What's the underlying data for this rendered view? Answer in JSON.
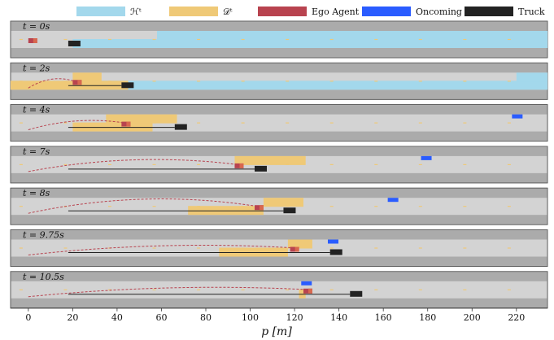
{
  "colors": {
    "H": "#a3d8ec",
    "D": "#efc977",
    "ego": "#b8434f",
    "oncoming": "#2a5cff",
    "truck": "#222222",
    "road": "#d3d3d3",
    "shoulder": "#ababab",
    "lane_dash": "#efc977",
    "path": "#b8434f"
  },
  "legend": [
    {
      "key": "H",
      "label": "ℋᵗ",
      "color": "#a3d8ec"
    },
    {
      "key": "D",
      "label": "𝒟ᵗ",
      "color": "#efc977"
    },
    {
      "key": "ego",
      "label": "Ego Agent",
      "color": "#b8434f"
    },
    {
      "key": "oncoming",
      "label": "Oncoming Traffic",
      "color": "#2a5cff"
    },
    {
      "key": "truck",
      "label": "Truck",
      "color": "#222222"
    }
  ],
  "axis": {
    "label": "p [m]",
    "ticks": [
      0,
      20,
      40,
      60,
      80,
      100,
      120,
      140,
      160,
      180,
      200,
      220
    ],
    "xlim": [
      -8,
      234
    ]
  },
  "chart_data": {
    "type": "scenario-timeline",
    "xlabel": "p [m]",
    "panels": [
      {
        "label": "t = 0s",
        "H": [
          [
            20,
            234,
            1
          ],
          [
            58,
            234,
            0
          ]
        ],
        "D": [],
        "ego": 0,
        "truck": 18,
        "oncoming": null,
        "path": null,
        "truck_line": null
      },
      {
        "label": "t = 2s",
        "H": [
          [
            20,
            234,
            1
          ],
          [
            220,
            234,
            0
          ]
        ],
        "D": [
          [
            -8,
            45,
            1
          ],
          [
            20,
            33,
            0
          ]
        ],
        "ego": 20,
        "truck": 42,
        "oncoming": null,
        "path": [
          0,
          20,
          0.05
        ],
        "truck_line": [
          18,
          42
        ]
      },
      {
        "label": "t = 4s",
        "H": [],
        "D": [
          [
            20,
            56,
            1
          ],
          [
            35,
            67,
            0
          ]
        ],
        "ego": 42,
        "truck": 66,
        "oncoming": 218,
        "path": [
          0,
          42,
          0.15
        ],
        "truck_line": [
          18,
          66
        ]
      },
      {
        "label": "t = 7s",
        "H": [],
        "D": [
          [
            93,
            125,
            0
          ]
        ],
        "ego": 93,
        "truck": 102,
        "oncoming": 177,
        "path": [
          0,
          93,
          0.35
        ],
        "truck_line": [
          18,
          102
        ]
      },
      {
        "label": "t = 8s",
        "H": [],
        "D": [
          [
            72,
            106,
            1
          ],
          [
            106,
            124,
            0
          ]
        ],
        "ego": 102,
        "truck": 115,
        "oncoming": 162,
        "path": [
          0,
          102,
          0.45
        ],
        "truck_line": [
          18,
          115
        ]
      },
      {
        "label": "t = 9.75s",
        "H": [],
        "D": [
          [
            86,
            117,
            1
          ],
          [
            117,
            128,
            0
          ]
        ],
        "ego": 118,
        "truck": 136,
        "oncoming": 135,
        "path": [
          0,
          118,
          0.25
        ],
        "truck_line": [
          18,
          136
        ]
      },
      {
        "label": "t = 10.5s",
        "H": [],
        "D": [
          [
            122,
            125,
            1
          ]
        ],
        "ego": 124,
        "truck": 145,
        "oncoming": 123,
        "path": [
          0,
          124,
          0.0
        ],
        "truck_line": [
          18,
          145
        ]
      }
    ]
  }
}
